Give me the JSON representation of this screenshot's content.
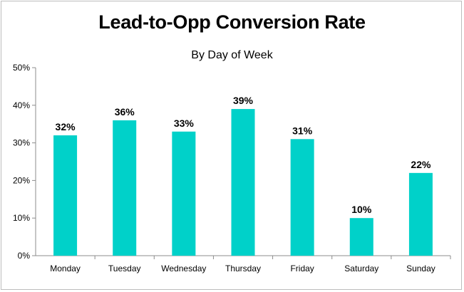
{
  "chart_data": {
    "type": "bar",
    "title": "Lead-to-Opp Conversion Rate",
    "subtitle": "By Day of Week",
    "xlabel": "",
    "ylabel": "",
    "categories": [
      "Monday",
      "Tuesday",
      "Wednesday",
      "Thursday",
      "Friday",
      "Saturday",
      "Sunday"
    ],
    "values": [
      32,
      36,
      33,
      39,
      31,
      10,
      22
    ],
    "data_labels": [
      "32%",
      "36%",
      "33%",
      "39%",
      "31%",
      "10%",
      "22%"
    ],
    "ylim": [
      0,
      50
    ],
    "yticks": [
      0,
      10,
      20,
      30,
      40,
      50
    ],
    "ytick_labels": [
      "0%",
      "10%",
      "20%",
      "30%",
      "40%",
      "50%"
    ],
    "grid": false,
    "legend": "none",
    "bar_color": "#00d1c9",
    "axis_color": "#8c8c8c"
  }
}
